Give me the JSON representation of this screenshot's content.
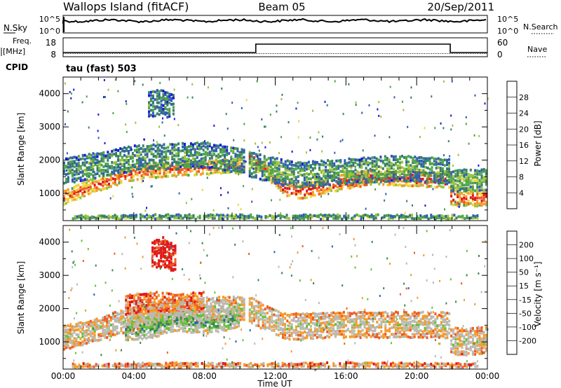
{
  "header": {
    "title_left": "Wallops Island (fitACF)",
    "title_center": "Beam 05",
    "title_right": "20/Sep/2011"
  },
  "strips": {
    "nsky_label": "N.Sky",
    "nsky_ticks": [
      "10^5",
      "10^0"
    ],
    "nsearch_label": "N.Search",
    "nsearch_ticks": [
      "10^5",
      "10^0"
    ],
    "freq_label_1": "Freq.",
    "freq_label_2": "[MHz]",
    "freq_ticks": [
      "18",
      "8"
    ],
    "nave_label": "Nave",
    "nave_ticks": [
      "60",
      "0"
    ],
    "cpid_label": "CPID",
    "cpid_value": "tau (fast) 503"
  },
  "chart_data": [
    {
      "type": "heatmap",
      "name": "power-panel",
      "ylabel": "Slant Range [km]",
      "ylim": [
        180,
        4500
      ],
      "yticks": [
        "1000",
        "2000",
        "3000",
        "4000"
      ],
      "xlim_hours": [
        0,
        24
      ],
      "colorbar_label": "Power [dB]",
      "colorbar_ticks": [
        "4",
        "8",
        "12",
        "16",
        "20",
        "24",
        "28"
      ],
      "colors": [
        "#1a1ad8",
        "#2f5db5",
        "#3a7d6b",
        "#4ea447",
        "#9cc33d",
        "#f0d23a",
        "#f59a2a",
        "#ef5b22",
        "#e01818"
      ],
      "bands": [
        {
          "t": [
            0.0,
            1.5,
            3.0,
            4.5,
            6.0,
            7.5,
            9.0,
            10.3
          ],
          "center": [
            900,
            1250,
            1500,
            1700,
            1750,
            1800,
            1850,
            1850
          ],
          "width": 180,
          "level": 0.85
        },
        {
          "t": [
            0.0,
            2.0,
            4.0,
            6.0,
            8.0,
            10.3
          ],
          "center": [
            1700,
            1900,
            2100,
            2150,
            2200,
            2000
          ],
          "width": 350,
          "level": 0.35
        },
        {
          "t": [
            10.5,
            11.5,
            12.5,
            13.5,
            15.0,
            17.0,
            19.0,
            21.0,
            21.9
          ],
          "center": [
            2100,
            1700,
            1200,
            1100,
            1300,
            1500,
            1500,
            1450,
            1450
          ],
          "width": 200,
          "level": 0.95
        },
        {
          "t": [
            10.5,
            13.0,
            16.0,
            19.0,
            21.9
          ],
          "center": [
            1900,
            1600,
            1700,
            1800,
            1700
          ],
          "width": 350,
          "level": 0.4
        },
        {
          "t": [
            21.9,
            22.5,
            23.5,
            24.0
          ],
          "center": [
            950,
            900,
            900,
            950
          ],
          "width": 220,
          "level": 0.9
        },
        {
          "t": [
            21.9,
            23.0,
            24.0
          ],
          "center": [
            1400,
            1450,
            1450
          ],
          "width": 300,
          "level": 0.45
        },
        {
          "t": [
            4.8,
            5.5,
            6.3
          ],
          "center": [
            3700,
            3800,
            3600
          ],
          "width": 350,
          "level": 0.3
        },
        {
          "t": [
            0.5,
            3.0,
            6.0,
            9.0,
            12.0,
            15.0,
            18.0,
            21.0,
            23.5
          ],
          "center": [
            300,
            300,
            320,
            310,
            300,
            320,
            310,
            300,
            300
          ],
          "width": 60,
          "level": 0.4
        }
      ]
    },
    {
      "type": "heatmap",
      "name": "velocity-panel",
      "ylabel": "Slant Range [km]",
      "ylim": [
        180,
        4500
      ],
      "yticks": [
        "1000",
        "2000",
        "3000",
        "4000"
      ],
      "xlim_hours": [
        0,
        24
      ],
      "xticks": [
        "00:00",
        "04:00",
        "08:00",
        "12:00",
        "16:00",
        "20:00",
        "00:00"
      ],
      "xlabel": "Time UT",
      "colorbar_label": "Velocity [m s⁻¹]",
      "colorbar_ticks": [
        "-200",
        "-100",
        "-50",
        "-15",
        "15",
        "50",
        "100",
        "200"
      ],
      "colors": [
        "#e01818",
        "#ef5b22",
        "#f59a2a",
        "#b9b9b0",
        "#b9b9b0",
        "#63c23a",
        "#3a8a4a",
        "#2b63b0",
        "#1a1ad8"
      ],
      "bands": [
        {
          "t": [
            0.0,
            1.5,
            3.0,
            4.5,
            6.0,
            7.5,
            9.0,
            10.3
          ],
          "center": [
            1150,
            1350,
            1600,
            1800,
            1900,
            2000,
            2050,
            2050
          ],
          "width": 320,
          "level": 0.45
        },
        {
          "t": [
            3.5,
            5.0,
            6.5,
            8.0
          ],
          "center": [
            2150,
            2250,
            2200,
            2250
          ],
          "width": 260,
          "level": 0.25
        },
        {
          "t": [
            3.5,
            5.0,
            6.5,
            8.0,
            10.0
          ],
          "center": [
            1400,
            1500,
            1700,
            1600,
            1800
          ],
          "width": 300,
          "level": 0.65
        },
        {
          "t": [
            10.5,
            11.5,
            12.5,
            13.5,
            15.0,
            17.0,
            19.0,
            21.0,
            21.9
          ],
          "center": [
            2000,
            1750,
            1500,
            1500,
            1550,
            1550,
            1550,
            1550,
            1550
          ],
          "width": 360,
          "level": 0.45
        },
        {
          "t": [
            21.9,
            23.0,
            24.0
          ],
          "center": [
            1050,
            1050,
            1100
          ],
          "width": 380,
          "level": 0.45
        },
        {
          "t": [
            5.0,
            5.6,
            6.4
          ],
          "center": [
            3650,
            3750,
            3500
          ],
          "width": 400,
          "level": 0.02
        },
        {
          "t": [
            0.5,
            3.0,
            6.0,
            9.0,
            12.0,
            15.0,
            18.0,
            21.0,
            23.5
          ],
          "center": [
            300,
            300,
            320,
            310,
            300,
            320,
            310,
            300,
            300
          ],
          "width": 70,
          "level": 0.3
        }
      ]
    }
  ]
}
